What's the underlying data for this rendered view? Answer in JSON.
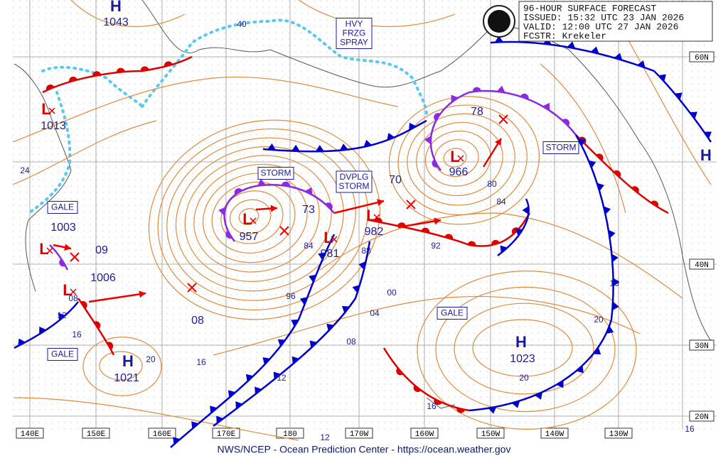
{
  "header": {
    "lines": [
      "96-HOUR SURFACE FORECAST",
      "ISSUED: 15:32 UTC 23 JAN 2026",
      "VALID:  12:00 UTC 27 JAN 2026",
      "FCSTR:  Krekeler"
    ]
  },
  "footer": "NWS/NCEP - Ocean Prediction Center - https://ocean.weather.gov",
  "longitude_labels": [
    "140E",
    "150E",
    "160E",
    "170E",
    "180",
    "170W",
    "160W",
    "150W",
    "140W",
    "130W"
  ],
  "latitude_labels": [
    "60N",
    "40N",
    "30N",
    "20N"
  ],
  "pressure_centers": [
    {
      "symbol": "H",
      "value": 1043
    },
    {
      "symbol": "L",
      "value": 1013
    },
    {
      "symbol": "L",
      "value": 1003
    },
    {
      "symbol": "L",
      "value": 1006
    },
    {
      "symbol": "H",
      "value": 1021
    },
    {
      "symbol": "L",
      "value": 957
    },
    {
      "symbol": "L",
      "value": 981
    },
    {
      "symbol": "L",
      "value": 982
    },
    {
      "symbol": "L",
      "value": 966
    },
    {
      "symbol": "H",
      "value": 1023
    },
    {
      "symbol": "H"
    }
  ],
  "isobar_labels": [
    "40",
    "24",
    "09",
    "08",
    "16",
    "20",
    "12",
    "16",
    "08",
    "73",
    "84",
    "96",
    "88",
    "70",
    "78",
    "80",
    "84",
    "92",
    "00",
    "04",
    "08",
    "16",
    "20",
    "20",
    "16",
    "12",
    "12",
    "16"
  ],
  "warnings": [
    {
      "lines": [
        "STORM"
      ]
    },
    {
      "lines": [
        "DVPLG",
        "STORM"
      ]
    },
    {
      "lines": [
        "STORM"
      ]
    },
    {
      "lines": [
        "GALE"
      ]
    },
    {
      "lines": [
        "GALE"
      ]
    },
    {
      "lines": [
        "GALE"
      ]
    },
    {
      "lines": [
        "HVY",
        "FRZG",
        "SPRAY"
      ]
    }
  ]
}
